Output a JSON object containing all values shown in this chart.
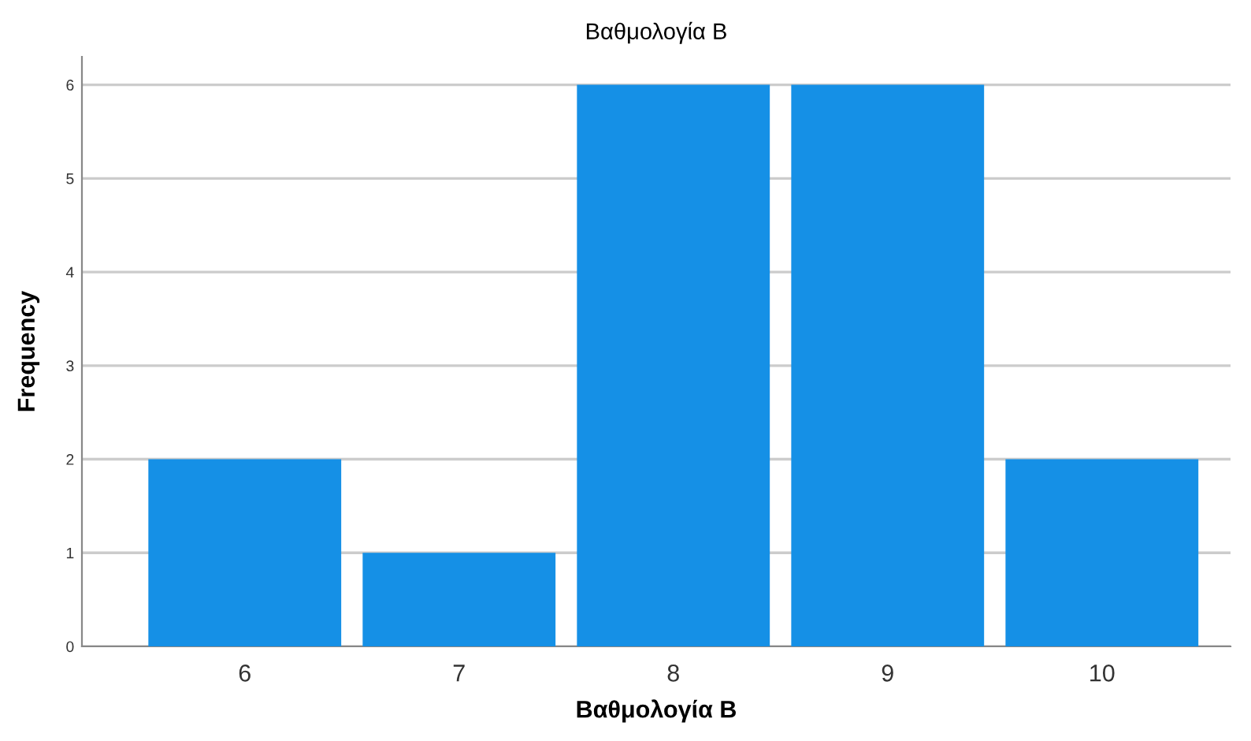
{
  "chart_data": {
    "type": "bar",
    "title": "Βαθμολογία Β",
    "xlabel": "Βαθμολογία Β",
    "ylabel": "Frequency",
    "categories": [
      "6",
      "7",
      "8",
      "9",
      "10"
    ],
    "values": [
      2,
      1,
      6,
      6,
      2
    ],
    "color": "#1590e6",
    "ylim": [
      0,
      6.3
    ],
    "yticks": [
      0,
      1,
      2,
      3,
      4,
      5,
      6
    ],
    "grid": "y"
  }
}
